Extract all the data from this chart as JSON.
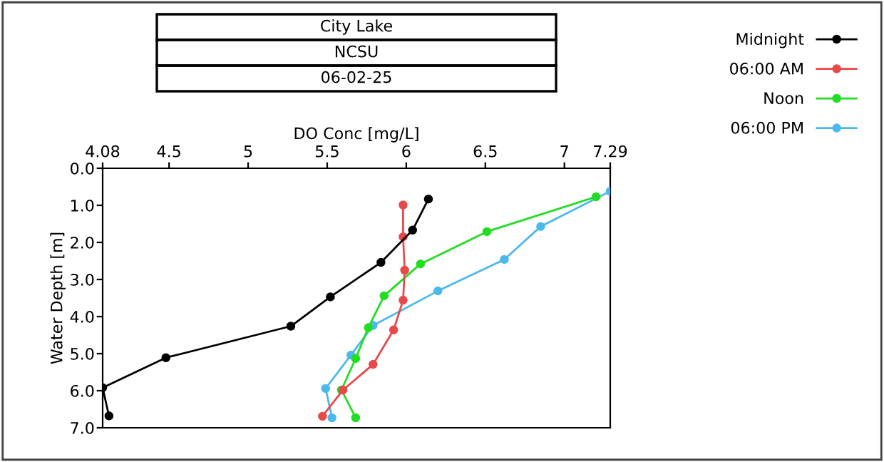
{
  "chart_data": {
    "type": "line",
    "title": "City Lake",
    "subtitle": "NCSU",
    "annotations": [
      "06-02-25"
    ],
    "xlabel": "DO Conc [mg/L]",
    "ylabel": "Water Depth [m]",
    "xlim": [
      4.08,
      7.29
    ],
    "xticks": [
      4.08,
      4.5,
      5,
      5.5,
      6,
      6.5,
      7,
      7.29
    ],
    "ylim": [
      7,
      0
    ],
    "yticks": [
      {
        "value": 0,
        "label": "0.0"
      },
      {
        "value": 1,
        "label": "1.0"
      },
      {
        "value": 2,
        "label": "2.0"
      },
      {
        "value": 3,
        "label": "3.0"
      },
      {
        "value": 4,
        "label": "4.0"
      },
      {
        "value": 5,
        "label": "5.0"
      },
      {
        "value": 6,
        "label": "6.0"
      },
      {
        "value": 7,
        "label": "7.0"
      }
    ],
    "marker": "circle",
    "line_style": "solid",
    "grid": false,
    "legend": "top right",
    "series": [
      {
        "name": "Midnight",
        "color": "#000000",
        "x": [
          6.14,
          6.04,
          5.84,
          5.52,
          5.27,
          4.48,
          4.08,
          4.12
        ],
        "values": [
          0.83,
          1.67,
          2.54,
          3.47,
          4.26,
          5.11,
          5.92,
          6.68
        ]
      },
      {
        "name": "06:00 AM",
        "color": "#e8494a",
        "x": [
          5.98,
          5.98,
          5.99,
          5.98,
          5.92,
          5.79,
          5.6,
          5.47
        ],
        "values": [
          0.99,
          1.85,
          2.75,
          3.56,
          4.36,
          5.29,
          5.98,
          6.69
        ]
      },
      {
        "name": "Noon",
        "color": "#22dd22",
        "x": [
          7.2,
          6.51,
          6.09,
          5.86,
          5.76,
          5.68,
          5.59,
          5.68
        ],
        "values": [
          0.77,
          1.71,
          2.58,
          3.44,
          4.3,
          5.13,
          5.98,
          6.73
        ]
      },
      {
        "name": "06:00 PM",
        "color": "#4db8ec",
        "x": [
          7.29,
          6.85,
          6.62,
          6.2,
          5.79,
          5.65,
          5.49,
          5.53
        ],
        "values": [
          0.62,
          1.57,
          2.46,
          3.31,
          4.24,
          5.04,
          5.94,
          6.73
        ]
      }
    ]
  }
}
